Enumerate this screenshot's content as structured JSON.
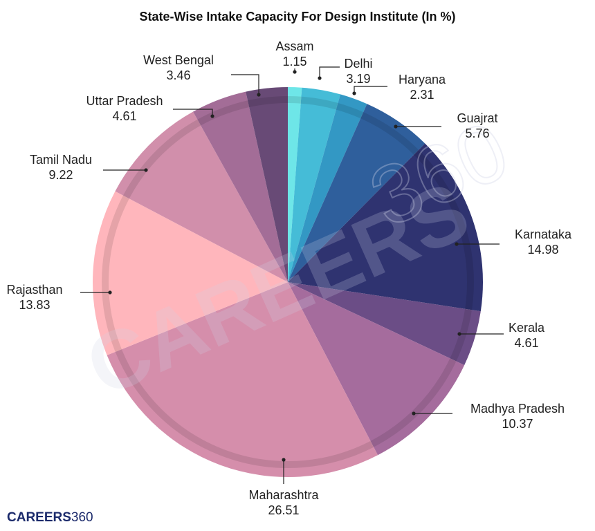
{
  "chart_data": {
    "type": "pie",
    "title": "State-Wise Intake Capacity For Design Institute (In %)",
    "slices": [
      {
        "label": "Assam",
        "value": 1.15,
        "color": "#6ee6e8"
      },
      {
        "label": "Delhi",
        "value": 3.19,
        "color": "#45bcd7"
      },
      {
        "label": "Haryana",
        "value": 2.31,
        "color": "#3398c4"
      },
      {
        "label": "Guajrat",
        "value": 5.76,
        "color": "#2f5f9c"
      },
      {
        "label": "Karnataka",
        "value": 14.98,
        "color": "#2f3370"
      },
      {
        "label": "Kerala",
        "value": 4.61,
        "color": "#6b4d86"
      },
      {
        "label": "Madhya Pradesh",
        "value": 10.37,
        "color": "#a56c9d"
      },
      {
        "label": "Maharashtra",
        "value": 26.51,
        "color": "#d58eab"
      },
      {
        "label": "Rajasthan",
        "value": 13.83,
        "color": "#ffb6bc"
      },
      {
        "label": "Tamil Nadu",
        "value": 9.22,
        "color": "#d18fab"
      },
      {
        "label": "Uttar Pradesh",
        "value": 4.61,
        "color": "#a36d97"
      },
      {
        "label": "West Bengal",
        "value": 3.46,
        "color": "#684a76"
      }
    ]
  },
  "watermark": "CAREERS",
  "watermark_360": "360",
  "logo": {
    "part1": "CAREERS",
    "part2": "360"
  }
}
